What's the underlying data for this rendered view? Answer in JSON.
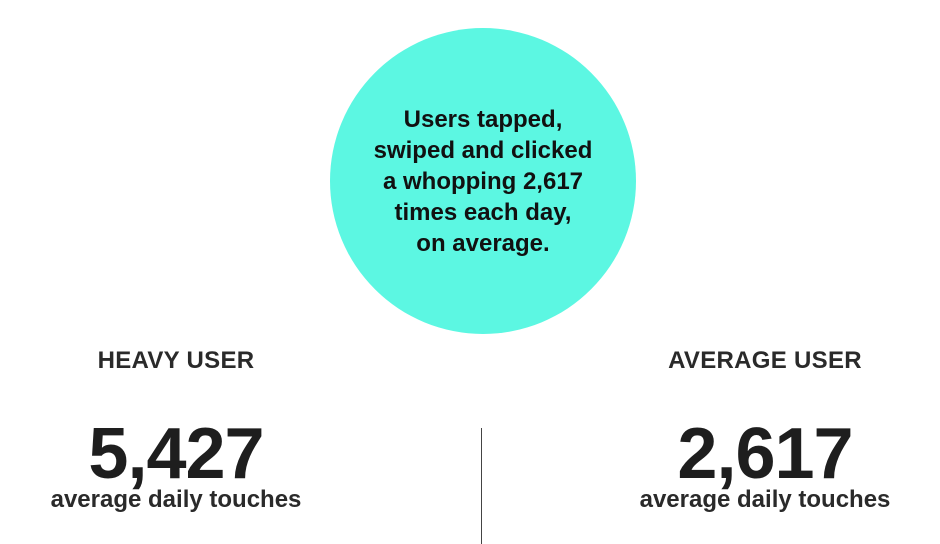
{
  "callout": {
    "text": "Users tapped,\nswiped and clicked\na whopping 2,617\ntimes each day,\non average.",
    "color": "#5cf7e2"
  },
  "heavy_user": {
    "label": "HEAVY USER",
    "value": "5,427",
    "caption": "average daily touches"
  },
  "average_user": {
    "label": "AVERAGE USER",
    "value": "2,617",
    "caption": "average daily touches"
  }
}
